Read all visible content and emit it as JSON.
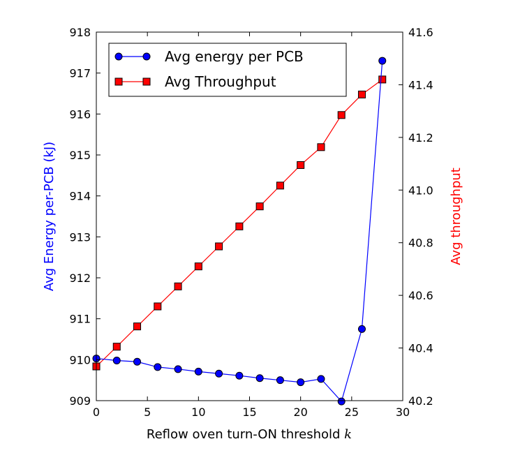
{
  "chart_data": {
    "type": "line",
    "title": "",
    "xlabel": "Reflow oven turn-ON threshold",
    "xlabel_var": "k",
    "ylabel_left": "Avg Energy per-PCB (kJ)",
    "ylabel_right": "Avg throughput",
    "xlim": [
      0,
      30
    ],
    "ylim_left": [
      909,
      918
    ],
    "ylim_right": [
      40.2,
      41.6
    ],
    "x_ticks": [
      "0",
      "5",
      "10",
      "15",
      "20",
      "25",
      "30"
    ],
    "y_left_ticks": [
      "909",
      "910",
      "911",
      "912",
      "913",
      "914",
      "915",
      "916",
      "917",
      "918"
    ],
    "y_right_ticks": [
      "40.2",
      "40.4",
      "40.6",
      "40.8",
      "41.0",
      "41.2",
      "41.4",
      "41.6"
    ],
    "grid": false,
    "legend_position": "top-left",
    "x": [
      0,
      2,
      4,
      6,
      8,
      10,
      12,
      14,
      16,
      18,
      20,
      22,
      24,
      26,
      28
    ],
    "series": [
      {
        "name": "Avg energy per PCB",
        "axis": "left",
        "color": "#0000ff",
        "marker": "circle",
        "values": [
          910.03,
          909.98,
          909.95,
          909.82,
          909.77,
          909.71,
          909.66,
          909.61,
          909.55,
          909.5,
          909.45,
          909.53,
          908.98,
          910.75,
          917.3
        ]
      },
      {
        "name": "Avg Throughput",
        "axis": "right",
        "color": "#ff0000",
        "marker": "square",
        "values": [
          40.33,
          40.405,
          40.482,
          40.558,
          40.634,
          40.71,
          40.786,
          40.862,
          40.938,
          41.017,
          41.095,
          41.163,
          41.285,
          41.363,
          41.42
        ]
      }
    ]
  }
}
